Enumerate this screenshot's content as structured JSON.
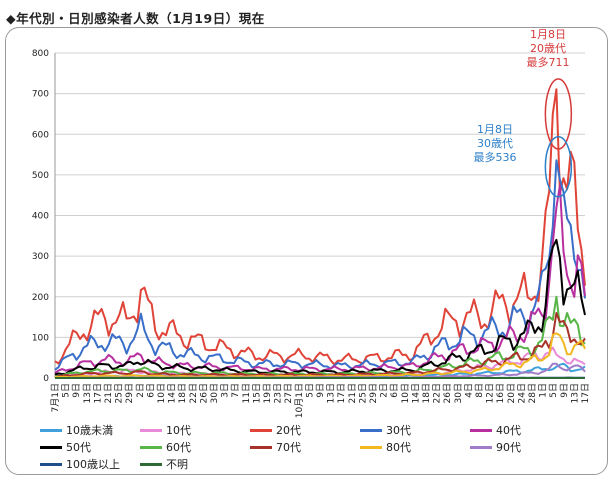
{
  "title": "◆年代別・日別感染者人数（1月19日）現在",
  "chart_data": {
    "type": "line",
    "title": "◆年代別・日別感染者人数（1月19日）現在",
    "ylim": [
      0,
      800
    ],
    "yticks": [
      0,
      100,
      200,
      300,
      400,
      500,
      600,
      700,
      800
    ],
    "grid": true,
    "legend_placement": "bottom",
    "x_tick_labels": [
      "7月1日",
      "5日",
      "9日",
      "13日",
      "17日",
      "21日",
      "25日",
      "29日",
      "2日",
      "6日",
      "10日",
      "14日",
      "18日",
      "22日",
      "26日",
      "30日",
      "3日",
      "7日",
      "11日",
      "15日",
      "19日",
      "23日",
      "27日",
      "10月1日",
      "5日",
      "9日",
      "13日",
      "17日",
      "21日",
      "25日",
      "29日",
      "2日",
      "6日",
      "10日",
      "14日",
      "18日",
      "22日",
      "26日",
      "30日",
      "4日",
      "8日",
      "12日",
      "16日",
      "20日",
      "24日",
      "28日",
      "1日",
      "5日",
      "9日",
      "13日",
      "17日"
    ],
    "series": [
      {
        "name": "10歳未満",
        "color": "#3fa0dc",
        "points": [
          [
            0,
            2
          ],
          [
            20,
            5
          ],
          [
            40,
            6
          ],
          [
            60,
            4
          ],
          [
            80,
            4
          ],
          [
            100,
            6
          ],
          [
            110,
            8
          ],
          [
            120,
            12
          ],
          [
            132,
            18
          ],
          [
            138,
            25
          ],
          [
            142,
            30
          ],
          [
            144,
            22
          ],
          [
            148,
            22
          ]
        ]
      },
      {
        "name": "10代",
        "color": "#e88ad8",
        "points": [
          [
            0,
            4
          ],
          [
            10,
            12
          ],
          [
            20,
            18
          ],
          [
            30,
            12
          ],
          [
            40,
            10
          ],
          [
            60,
            7
          ],
          [
            80,
            8
          ],
          [
            100,
            10
          ],
          [
            110,
            14
          ],
          [
            120,
            28
          ],
          [
            130,
            45
          ],
          [
            138,
            65
          ],
          [
            142,
            50
          ],
          [
            144,
            45
          ],
          [
            148,
            30
          ]
        ]
      },
      {
        "name": "20代",
        "color": "#e04438",
        "points": [
          [
            0,
            40
          ],
          [
            8,
            120
          ],
          [
            14,
            150
          ],
          [
            20,
            140
          ],
          [
            24,
            210
          ],
          [
            28,
            130
          ],
          [
            36,
            100
          ],
          [
            44,
            80
          ],
          [
            56,
            55
          ],
          [
            70,
            55
          ],
          [
            80,
            45
          ],
          [
            90,
            50
          ],
          [
            100,
            60
          ],
          [
            108,
            130
          ],
          [
            114,
            150
          ],
          [
            120,
            150
          ],
          [
            126,
            190
          ],
          [
            132,
            200
          ],
          [
            136,
            270
          ],
          [
            138,
            410
          ],
          [
            140,
            711
          ],
          [
            142,
            520
          ],
          [
            144,
            460
          ],
          [
            146,
            380
          ],
          [
            148,
            290
          ]
        ]
      },
      {
        "name": "30代",
        "color": "#3a6fc9",
        "points": [
          [
            0,
            25
          ],
          [
            8,
            75
          ],
          [
            14,
            90
          ],
          [
            20,
            85
          ],
          [
            24,
            120
          ],
          [
            28,
            80
          ],
          [
            36,
            60
          ],
          [
            44,
            50
          ],
          [
            56,
            35
          ],
          [
            70,
            35
          ],
          [
            80,
            30
          ],
          [
            90,
            35
          ],
          [
            100,
            40
          ],
          [
            108,
            80
          ],
          [
            114,
            100
          ],
          [
            120,
            110
          ],
          [
            126,
            130
          ],
          [
            132,
            160
          ],
          [
            136,
            200
          ],
          [
            138,
            330
          ],
          [
            140,
            536
          ],
          [
            142,
            380
          ],
          [
            144,
            320
          ],
          [
            146,
            360
          ],
          [
            148,
            210
          ]
        ]
      },
      {
        "name": "40代",
        "color": "#b830a0",
        "points": [
          [
            0,
            12
          ],
          [
            8,
            35
          ],
          [
            14,
            45
          ],
          [
            20,
            40
          ],
          [
            24,
            55
          ],
          [
            28,
            40
          ],
          [
            36,
            30
          ],
          [
            44,
            28
          ],
          [
            56,
            22
          ],
          [
            70,
            22
          ],
          [
            80,
            22
          ],
          [
            90,
            25
          ],
          [
            100,
            30
          ],
          [
            108,
            55
          ],
          [
            114,
            70
          ],
          [
            120,
            80
          ],
          [
            126,
            95
          ],
          [
            132,
            120
          ],
          [
            136,
            160
          ],
          [
            138,
            260
          ],
          [
            140,
            420
          ],
          [
            142,
            300
          ],
          [
            144,
            260
          ],
          [
            146,
            290
          ],
          [
            148,
            180
          ]
        ]
      },
      {
        "name": "50代",
        "color": "#000000",
        "points": [
          [
            0,
            8
          ],
          [
            8,
            25
          ],
          [
            14,
            30
          ],
          [
            20,
            30
          ],
          [
            24,
            45
          ],
          [
            28,
            30
          ],
          [
            36,
            25
          ],
          [
            44,
            22
          ],
          [
            56,
            15
          ],
          [
            70,
            15
          ],
          [
            80,
            15
          ],
          [
            90,
            18
          ],
          [
            100,
            20
          ],
          [
            108,
            40
          ],
          [
            114,
            55
          ],
          [
            120,
            70
          ],
          [
            126,
            90
          ],
          [
            132,
            110
          ],
          [
            136,
            150
          ],
          [
            138,
            230
          ],
          [
            140,
            340
          ],
          [
            142,
            260
          ],
          [
            144,
            230
          ],
          [
            146,
            200
          ],
          [
            148,
            170
          ]
        ]
      },
      {
        "name": "60代",
        "color": "#58b548",
        "points": [
          [
            0,
            5
          ],
          [
            8,
            15
          ],
          [
            14,
            18
          ],
          [
            20,
            18
          ],
          [
            24,
            22
          ],
          [
            28,
            15
          ],
          [
            36,
            12
          ],
          [
            44,
            12
          ],
          [
            56,
            10
          ],
          [
            70,
            10
          ],
          [
            80,
            10
          ],
          [
            90,
            12
          ],
          [
            100,
            15
          ],
          [
            108,
            25
          ],
          [
            114,
            35
          ],
          [
            120,
            45
          ],
          [
            126,
            55
          ],
          [
            132,
            70
          ],
          [
            136,
            90
          ],
          [
            138,
            130
          ],
          [
            140,
            200
          ],
          [
            142,
            140
          ],
          [
            144,
            120
          ],
          [
            146,
            130
          ],
          [
            148,
            100
          ]
        ]
      },
      {
        "name": "70代",
        "color": "#a8322a",
        "points": [
          [
            0,
            3
          ],
          [
            8,
            10
          ],
          [
            14,
            12
          ],
          [
            20,
            12
          ],
          [
            24,
            15
          ],
          [
            28,
            10
          ],
          [
            36,
            8
          ],
          [
            44,
            8
          ],
          [
            56,
            8
          ],
          [
            70,
            8
          ],
          [
            80,
            8
          ],
          [
            90,
            10
          ],
          [
            100,
            12
          ],
          [
            108,
            20
          ],
          [
            114,
            25
          ],
          [
            120,
            35
          ],
          [
            126,
            45
          ],
          [
            132,
            55
          ],
          [
            136,
            70
          ],
          [
            138,
            100
          ],
          [
            140,
            160
          ],
          [
            142,
            110
          ],
          [
            144,
            100
          ],
          [
            146,
            110
          ],
          [
            148,
            80
          ]
        ]
      },
      {
        "name": "80代",
        "color": "#f2b820",
        "points": [
          [
            0,
            2
          ],
          [
            8,
            4
          ],
          [
            14,
            5
          ],
          [
            20,
            5
          ],
          [
            24,
            6
          ],
          [
            28,
            5
          ],
          [
            36,
            4
          ],
          [
            44,
            4
          ],
          [
            56,
            4
          ],
          [
            70,
            5
          ],
          [
            80,
            5
          ],
          [
            90,
            6
          ],
          [
            100,
            8
          ],
          [
            108,
            12
          ],
          [
            114,
            15
          ],
          [
            120,
            20
          ],
          [
            126,
            30
          ],
          [
            132,
            40
          ],
          [
            136,
            50
          ],
          [
            138,
            70
          ],
          [
            140,
            110
          ],
          [
            142,
            80
          ],
          [
            144,
            75
          ],
          [
            146,
            85
          ],
          [
            148,
            60
          ]
        ]
      },
      {
        "name": "90代",
        "color": "#a07cc8",
        "points": [
          [
            0,
            0
          ],
          [
            20,
            1
          ],
          [
            40,
            1
          ],
          [
            60,
            1
          ],
          [
            80,
            2
          ],
          [
            100,
            2
          ],
          [
            110,
            4
          ],
          [
            120,
            6
          ],
          [
            126,
            8
          ],
          [
            132,
            12
          ],
          [
            136,
            15
          ],
          [
            138,
            20
          ],
          [
            140,
            35
          ],
          [
            142,
            25
          ],
          [
            144,
            22
          ],
          [
            146,
            28
          ],
          [
            148,
            20
          ]
        ]
      },
      {
        "name": "100歳以上",
        "color": "#1f4e88",
        "points": [
          [
            0,
            0
          ],
          [
            40,
            0
          ],
          [
            80,
            0
          ],
          [
            120,
            0
          ],
          [
            148,
            1
          ]
        ]
      },
      {
        "name": "不明",
        "color": "#2e6b34",
        "points": [
          [
            0,
            0
          ],
          [
            40,
            0
          ],
          [
            80,
            0
          ],
          [
            120,
            0
          ],
          [
            148,
            0
          ]
        ]
      }
    ]
  },
  "annotations": [
    {
      "lines": [
        "1月8日",
        "20歳代",
        "最多711"
      ],
      "color": "#d63a3a"
    },
    {
      "lines": [
        "1月8日",
        "30歳代",
        "最多536"
      ],
      "color": "#2c7fc9"
    }
  ]
}
